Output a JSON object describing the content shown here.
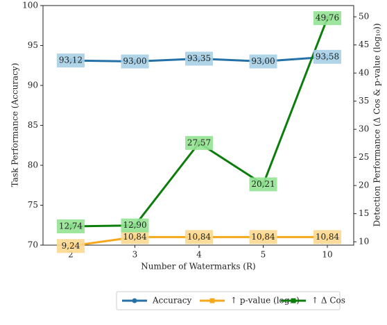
{
  "chart_data": {
    "type": "line",
    "categories": [
      "2",
      "3",
      "4",
      "5",
      "10"
    ],
    "x_label": "Number of Watermarks (R)",
    "y_label": "Task Performance (Accuracy)",
    "y2_label": "Detection Performance (Δ Cos & p-value (log₁₀))",
    "ylim": [
      70,
      100
    ],
    "yticks": [
      70,
      75,
      80,
      85,
      90,
      95,
      100
    ],
    "y2lim": [
      9.4,
      52
    ],
    "y2ticks": [
      10,
      15,
      20,
      25,
      30,
      35,
      40,
      45,
      50
    ],
    "series": [
      {
        "name": "Accuracy",
        "color": "#2471a8",
        "label_color": "#a9d0e6",
        "marker": "circle",
        "axis": "y",
        "values": [
          93.12,
          93.0,
          93.35,
          93.0,
          93.58
        ],
        "value_labels": [
          "93,12",
          "93,00",
          "93,35",
          "93,00",
          "93,58"
        ]
      },
      {
        "name": "↑ p-value (log₁₀)",
        "color": "#f5a81c",
        "label_color": "#fcd88f",
        "marker": "square",
        "axis": "y2",
        "values": [
          9.24,
          10.84,
          10.84,
          10.84,
          10.84
        ],
        "value_labels": [
          "9,24",
          "10,84",
          "10,84",
          "10,84",
          "10,84"
        ]
      },
      {
        "name": "↑ Δ Cos",
        "color": "#0a7d0a",
        "label_color": "#93e393",
        "marker": "square",
        "axis": "y2",
        "values": [
          12.74,
          12.9,
          27.57,
          20.21,
          49.76
        ],
        "value_labels": [
          "12,74",
          "12,90",
          "27,57",
          "20,21",
          "49,76"
        ]
      }
    ]
  }
}
